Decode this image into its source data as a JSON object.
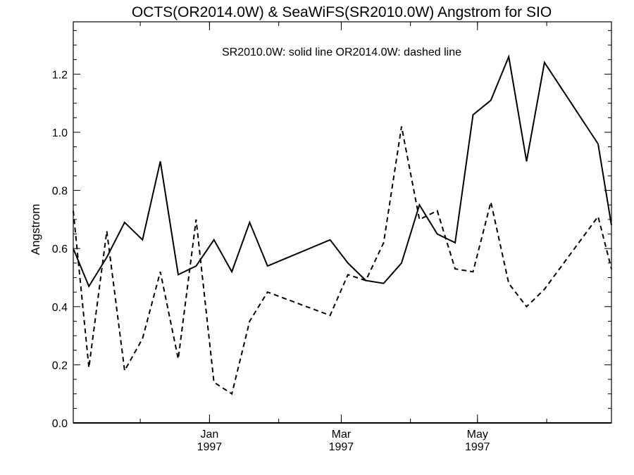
{
  "chart_data": {
    "type": "line",
    "title": "OCTS(OR2014.0W) & SeaWiFS(SR2010.0W)  Angstrom for SIO",
    "annotation": "SR2010.0W: solid line   OR2014.0W: dashed line",
    "ylabel": "Angstrom",
    "xlabel": "",
    "ylim": [
      0.0,
      1.38
    ],
    "yticks": [
      {
        "value": 0.0,
        "label": "0.0"
      },
      {
        "value": 0.2,
        "label": "0.2"
      },
      {
        "value": 0.4,
        "label": "0.4"
      },
      {
        "value": 0.6,
        "label": "0.6"
      },
      {
        "value": 0.8,
        "label": "0.8"
      },
      {
        "value": 1.0,
        "label": "1.0"
      },
      {
        "value": 1.2,
        "label": "1.2"
      }
    ],
    "xlim": [
      "1996-11-01",
      "1997-06-30"
    ],
    "xticks": [
      {
        "date": "1997-01-01",
        "month": "Jan",
        "year": "1997"
      },
      {
        "date": "1997-03-01",
        "month": "Mar",
        "year": "1997"
      },
      {
        "date": "1997-05-01",
        "month": "May",
        "year": "1997"
      }
    ],
    "grid": false,
    "series": [
      {
        "name": "SR2010.0W",
        "style": "solid",
        "color": "#000000",
        "points": [
          {
            "x": "1996-11-01",
            "y": 0.6
          },
          {
            "x": "1996-11-08",
            "y": 0.47
          },
          {
            "x": "1996-11-16",
            "y": 0.57
          },
          {
            "x": "1996-11-24",
            "y": 0.69
          },
          {
            "x": "1996-12-02",
            "y": 0.63
          },
          {
            "x": "1996-12-10",
            "y": 0.9
          },
          {
            "x": "1996-12-18",
            "y": 0.51
          },
          {
            "x": "1996-12-26",
            "y": 0.54
          },
          {
            "x": "1997-01-03",
            "y": 0.63
          },
          {
            "x": "1997-01-11",
            "y": 0.52
          },
          {
            "x": "1997-01-19",
            "y": 0.69
          },
          {
            "x": "1997-01-27",
            "y": 0.54
          },
          {
            "x": "1997-02-24",
            "y": 0.63
          },
          {
            "x": "1997-03-04",
            "y": 0.55
          },
          {
            "x": "1997-03-12",
            "y": 0.49
          },
          {
            "x": "1997-03-20",
            "y": 0.48
          },
          {
            "x": "1997-03-28",
            "y": 0.55
          },
          {
            "x": "1997-04-05",
            "y": 0.75
          },
          {
            "x": "1997-04-13",
            "y": 0.65
          },
          {
            "x": "1997-04-21",
            "y": 0.62
          },
          {
            "x": "1997-04-29",
            "y": 1.06
          },
          {
            "x": "1997-05-07",
            "y": 1.11
          },
          {
            "x": "1997-05-15",
            "y": 1.26
          },
          {
            "x": "1997-05-23",
            "y": 0.9
          },
          {
            "x": "1997-05-31",
            "y": 1.24
          },
          {
            "x": "1997-06-24",
            "y": 0.96
          },
          {
            "x": "1997-06-30",
            "y": 0.68
          }
        ]
      },
      {
        "name": "OR2014.0W",
        "style": "dashed",
        "color": "#000000",
        "points": [
          {
            "x": "1996-11-01",
            "y": 0.73
          },
          {
            "x": "1996-11-08",
            "y": 0.19
          },
          {
            "x": "1996-11-16",
            "y": 0.66
          },
          {
            "x": "1996-11-24",
            "y": 0.18
          },
          {
            "x": "1996-12-02",
            "y": 0.29
          },
          {
            "x": "1996-12-10",
            "y": 0.52
          },
          {
            "x": "1996-12-18",
            "y": 0.22
          },
          {
            "x": "1996-12-26",
            "y": 0.7
          },
          {
            "x": "1997-01-03",
            "y": 0.14
          },
          {
            "x": "1997-01-11",
            "y": 0.1
          },
          {
            "x": "1997-01-19",
            "y": 0.35
          },
          {
            "x": "1997-01-27",
            "y": 0.45
          },
          {
            "x": "1997-02-24",
            "y": 0.37
          },
          {
            "x": "1997-03-04",
            "y": 0.51
          },
          {
            "x": "1997-03-12",
            "y": 0.49
          },
          {
            "x": "1997-03-20",
            "y": 0.62
          },
          {
            "x": "1997-03-28",
            "y": 1.02
          },
          {
            "x": "1997-04-05",
            "y": 0.7
          },
          {
            "x": "1997-04-13",
            "y": 0.73
          },
          {
            "x": "1997-04-21",
            "y": 0.53
          },
          {
            "x": "1997-04-29",
            "y": 0.52
          },
          {
            "x": "1997-05-07",
            "y": 0.76
          },
          {
            "x": "1997-05-15",
            "y": 0.48
          },
          {
            "x": "1997-05-23",
            "y": 0.4
          },
          {
            "x": "1997-05-31",
            "y": 0.46
          },
          {
            "x": "1997-06-24",
            "y": 0.71
          },
          {
            "x": "1997-06-30",
            "y": 0.53
          }
        ]
      }
    ]
  }
}
